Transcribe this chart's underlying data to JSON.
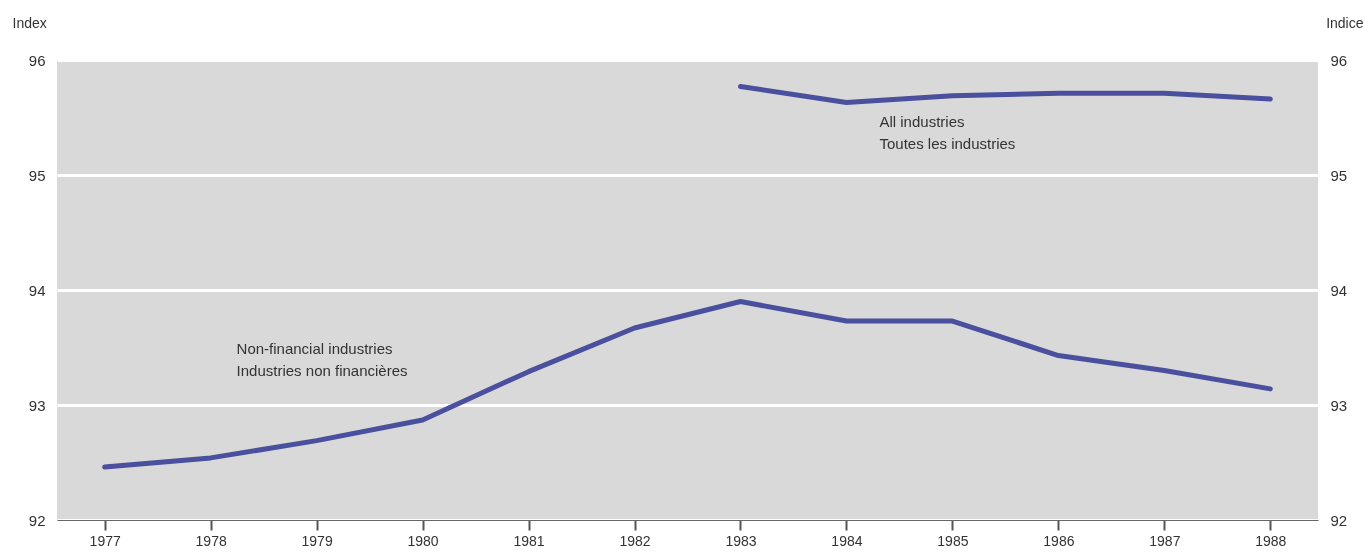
{
  "chart_data": {
    "type": "line",
    "ylabel": "Index",
    "y2label": "Indice",
    "categories": [
      "1977",
      "1978",
      "1979",
      "1980",
      "1981",
      "1982",
      "1983",
      "1984",
      "1985",
      "1986",
      "1987",
      "1988"
    ],
    "series": [
      {
        "name": "All industries\nToutes les industries",
        "color": "#4a4f9e",
        "values": [
          null,
          null,
          null,
          null,
          null,
          null,
          95.77,
          95.63,
          95.69,
          95.71,
          95.71,
          95.66
        ]
      },
      {
        "name": "Non-financial industries\nIndustries non financières",
        "color": "#4a4f9e",
        "values": [
          92.46,
          92.54,
          92.69,
          92.87,
          93.29,
          93.67,
          93.9,
          93.73,
          93.73,
          93.43,
          93.3,
          93.14
        ]
      }
    ],
    "ylim": [
      92,
      96
    ],
    "yticks": [
      92,
      93,
      94,
      95,
      96
    ],
    "y2lim": [
      92,
      96
    ],
    "y2ticks": [
      92,
      93,
      94,
      95,
      96
    ],
    "grid": "y",
    "marker": "none",
    "line_style": "solid"
  }
}
